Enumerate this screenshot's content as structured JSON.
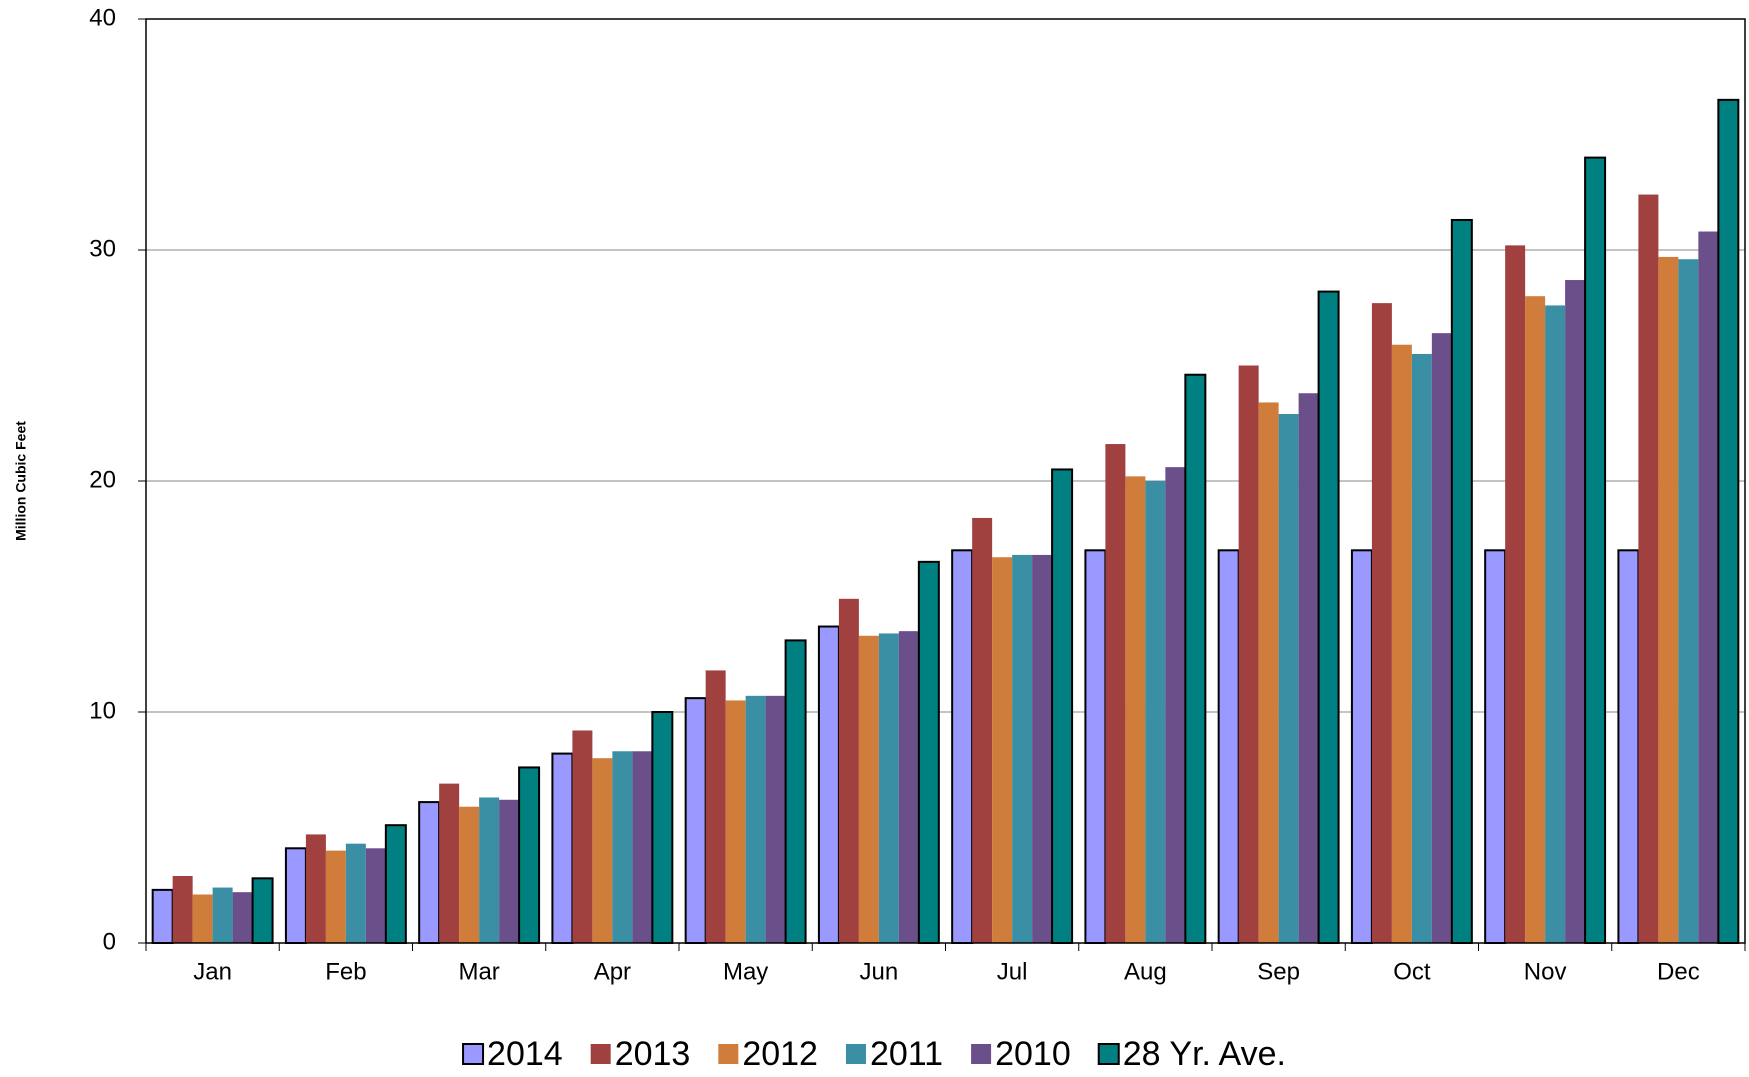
{
  "chart_data": {
    "type": "bar",
    "y_label": "Million Cubic Feet",
    "categories": [
      "Jan",
      "Feb",
      "Mar",
      "Apr",
      "May",
      "Jun",
      "Jul",
      "Aug",
      "Sep",
      "Oct",
      "Nov",
      "Dec"
    ],
    "series": [
      {
        "name": "2014",
        "color": "#9999ff",
        "stroke": "#000000",
        "values": [
          2.3,
          4.1,
          6.1,
          8.2,
          10.6,
          13.7,
          17.0,
          17.0,
          17.0,
          17.0,
          17.0,
          17.0
        ]
      },
      {
        "name": "2013",
        "color": "#a0403f",
        "values": [
          2.9,
          4.7,
          6.9,
          9.2,
          11.8,
          14.9,
          18.4,
          21.6,
          25.0,
          27.7,
          30.2,
          32.4
        ]
      },
      {
        "name": "2012",
        "color": "#d07c3a",
        "values": [
          2.1,
          4.0,
          5.9,
          8.0,
          10.5,
          13.3,
          16.7,
          20.2,
          23.4,
          25.9,
          28.0,
          29.7
        ]
      },
      {
        "name": "2011",
        "color": "#3a8fa4",
        "values": [
          2.4,
          4.3,
          6.3,
          8.3,
          10.7,
          13.4,
          16.8,
          20.0,
          22.9,
          25.5,
          27.6,
          29.6
        ]
      },
      {
        "name": "2010",
        "color": "#6b4f8a",
        "values": [
          2.2,
          4.1,
          6.2,
          8.3,
          10.7,
          13.5,
          16.8,
          20.6,
          23.8,
          26.4,
          28.7,
          30.8
        ]
      },
      {
        "name": "28 Yr. Ave.",
        "color": "#008080",
        "stroke": "#000000",
        "values": [
          2.8,
          5.1,
          7.6,
          10.0,
          13.1,
          16.5,
          20.5,
          24.6,
          28.2,
          31.3,
          34.0,
          36.5
        ]
      }
    ],
    "ylim": [
      0,
      40
    ],
    "yticks": [
      0,
      10,
      20,
      30,
      40
    ],
    "grid": true,
    "legend": "bottom"
  }
}
